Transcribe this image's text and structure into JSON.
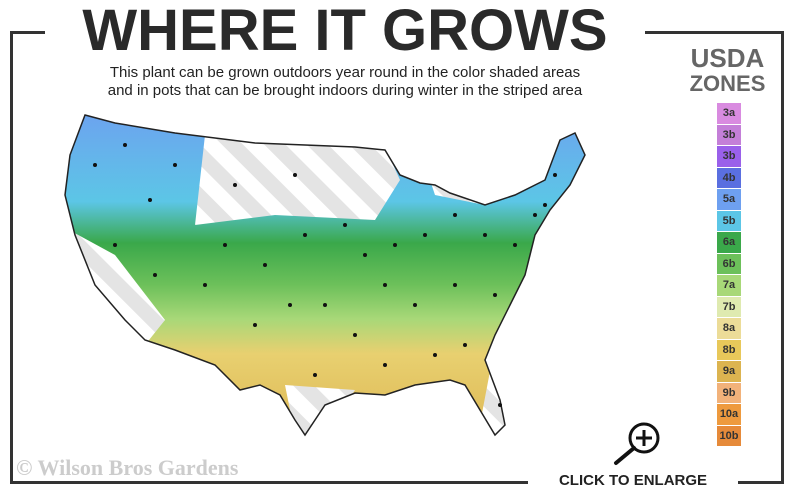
{
  "title": "WHERE IT GROWS",
  "subtitle_line1": "This plant can be grown outdoors year round in the color shaded areas",
  "subtitle_line2": "and in pots that can be brought indoors during winter in the striped area",
  "legend": {
    "title_line1": "USDA",
    "title_line2": "ZONES",
    "zones": [
      {
        "label": "3a",
        "color": "#d98be0"
      },
      {
        "label": "3b",
        "color": "#c47fd8"
      },
      {
        "label": "3b",
        "color": "#9a60ea"
      },
      {
        "label": "4b",
        "color": "#5a6fe0"
      },
      {
        "label": "5a",
        "color": "#6ea0f0"
      },
      {
        "label": "5b",
        "color": "#5cc6e6"
      },
      {
        "label": "6a",
        "color": "#3aa84a"
      },
      {
        "label": "6b",
        "color": "#6cc05a"
      },
      {
        "label": "7a",
        "color": "#a8d878"
      },
      {
        "label": "7b",
        "color": "#dfeab0"
      },
      {
        "label": "8a",
        "color": "#ecdc98"
      },
      {
        "label": "8b",
        "color": "#e8c85a"
      },
      {
        "label": "9a",
        "color": "#dcb450"
      },
      {
        "label": "9b",
        "color": "#f2b27a"
      },
      {
        "label": "10a",
        "color": "#ee9a3e"
      },
      {
        "label": "10b",
        "color": "#e68a3a"
      }
    ]
  },
  "copyright": "© Wilson Bros Gardens",
  "enlarge_label": "CLICK TO ENLARGE",
  "icons": {
    "enlarge": "magnifier-plus-icon"
  }
}
